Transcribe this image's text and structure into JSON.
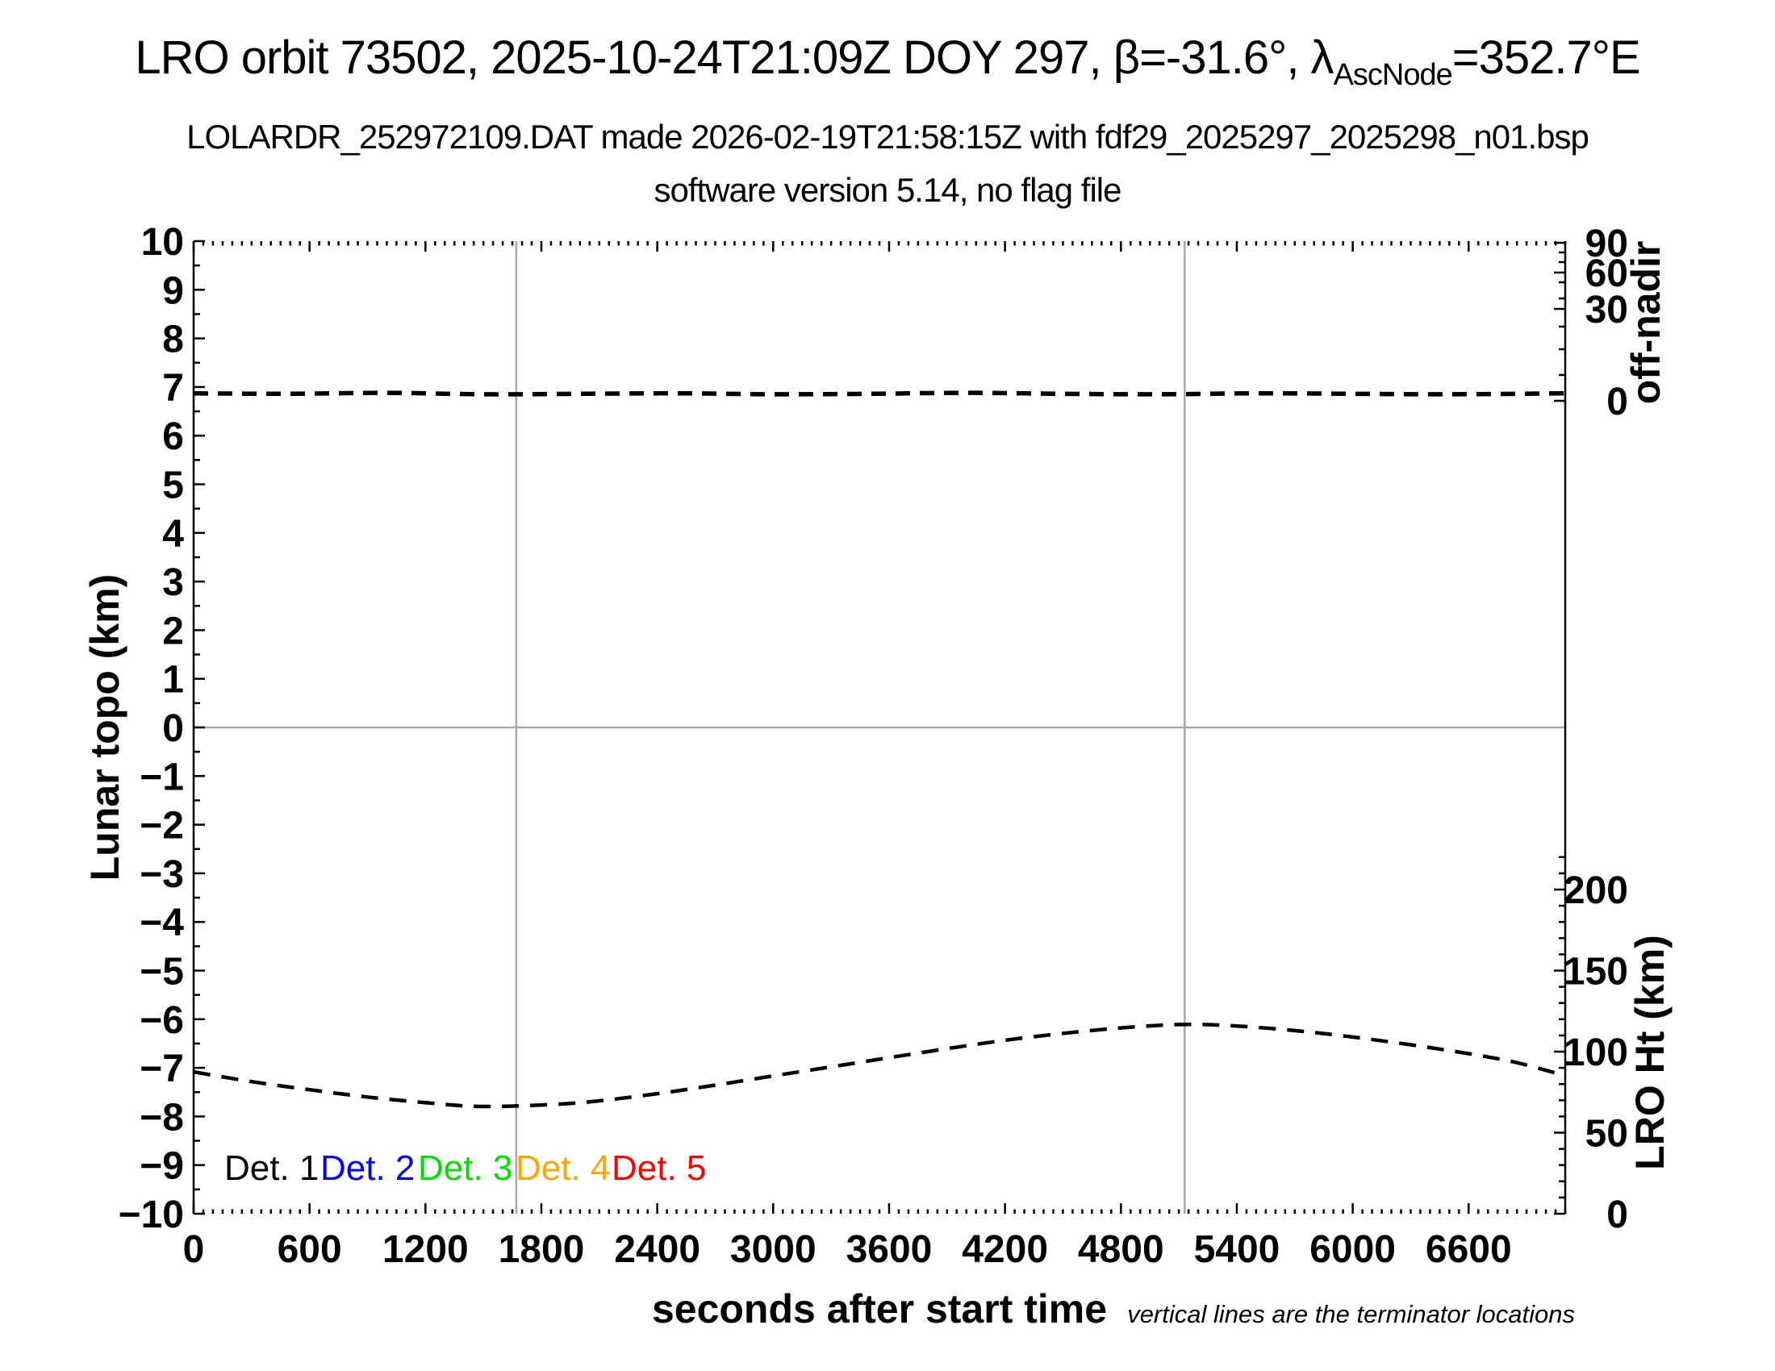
{
  "title": {
    "part1": "LRO orbit 73502, 2025-10-24T21:09Z DOY 297, β=-31.6°, λ",
    "subscript": "AscNode",
    "part2": "=352.7°E"
  },
  "subtitle1": "LOLARDR_252972109.DAT made 2026-02-19T21:58:15Z with fdf29_2025297_2025298_n01.bsp",
  "subtitle2": "software version 5.14, no flag file",
  "footnote": "vertical lines are the terminator locations",
  "legend": {
    "items": [
      {
        "label": "Det. 1",
        "color": "#000000"
      },
      {
        "label": "Det. 2",
        "color": "#0000ff"
      },
      {
        "label": "Det. 3",
        "color": "#00dd00"
      },
      {
        "label": "Det. 4",
        "color": "#ffa500"
      },
      {
        "label": "Det. 5",
        "color": "#ff0000"
      }
    ]
  },
  "colors": {
    "curve": "#000000",
    "gridline": "#a8a8a8",
    "frame": "#000000"
  },
  "chart_data": {
    "type": "line",
    "title": "LRO orbit 73502, 2025-10-24T21:09Z DOY 297, β=-31.6°, λ AscNode=352.7°E",
    "xlabel": "seconds after start time",
    "ylabel_left": "Lunar topo (km)",
    "ylabel_right_top": "off-nadir",
    "ylabel_right_bottom": "LRO Ht (km)",
    "grid": "terminator verticals + zero horizontal only",
    "legend_position": "inside lower-left, text-only colored labels",
    "axes": {
      "x": {
        "range": [
          0,
          7100
        ],
        "major_ticks": [
          0,
          600,
          1200,
          1800,
          2400,
          3000,
          3600,
          4200,
          4800,
          5400,
          6000,
          6600
        ],
        "minor_step": 50
      },
      "y_left": {
        "range": [
          -10,
          10
        ],
        "major_step": 1,
        "minor_step": 0.5,
        "major_tick_labels": [
          "10",
          "9",
          "8",
          "7",
          "6",
          "5",
          "4",
          "3",
          "2",
          "1",
          "0",
          "−1",
          "−2",
          "−3",
          "−4",
          "−5",
          "−6",
          "−7",
          "−8",
          "−9",
          "−10"
        ]
      },
      "y_right_top": {
        "tick_values": [
          90,
          60,
          30,
          0
        ],
        "tick_pos_frac_from_top": [
          0.0017,
          0.0323,
          0.0697,
          0.1642
        ],
        "minor_pos_frac_from_top": [
          0.0116,
          0.0216,
          0.0423,
          0.0589,
          0.0879,
          0.1111,
          0.1376
        ],
        "scale_note": "nonlinear (sine-like), 90 deg at frame top"
      },
      "y_right_bottom": {
        "range_km": [
          0,
          220
        ],
        "major_ticks": [
          200,
          150,
          100,
          50,
          0
        ],
        "minor_step_km": 10,
        "km_per_left_axis_unit": 30,
        "zero_km_at_left_axis_value": -10
      }
    },
    "terminator_lines_x_seconds": [
      1670,
      5130
    ],
    "zero_topo_gridline": 0,
    "series": [
      {
        "name": "spacecraft off-nadir angle (Det. 1–5 traces overlapping)",
        "style": "dashed",
        "color": "#000000",
        "axis": "left (plotted near topo value 6.86, just above off-nadir 0 tick)",
        "points_t_topo": [
          [
            0,
            6.87
          ],
          [
            500,
            6.86
          ],
          [
            1000,
            6.88
          ],
          [
            1500,
            6.85
          ],
          [
            2000,
            6.86
          ],
          [
            2500,
            6.87
          ],
          [
            3000,
            6.85
          ],
          [
            3500,
            6.86
          ],
          [
            4000,
            6.88
          ],
          [
            4500,
            6.86
          ],
          [
            5000,
            6.85
          ],
          [
            5500,
            6.87
          ],
          [
            6000,
            6.86
          ],
          [
            6500,
            6.85
          ],
          [
            7100,
            6.87
          ]
        ]
      },
      {
        "name": "LRO height above surface",
        "style": "dashed",
        "color": "#000000",
        "axis": "right bottom (km)",
        "points_t_km": [
          [
            0,
            87.5
          ],
          [
            300,
            81.5
          ],
          [
            600,
            76.5
          ],
          [
            900,
            72.0
          ],
          [
            1200,
            68.5
          ],
          [
            1450,
            66.3
          ],
          [
            1700,
            66.6
          ],
          [
            2000,
            68.5
          ],
          [
            2300,
            72.5
          ],
          [
            2600,
            77.5
          ],
          [
            3000,
            85.0
          ],
          [
            3400,
            92.5
          ],
          [
            3800,
            100.0
          ],
          [
            4200,
            107.0
          ],
          [
            4600,
            112.5
          ],
          [
            4900,
            115.5
          ],
          [
            5150,
            116.8
          ],
          [
            5400,
            115.8
          ],
          [
            5700,
            113.0
          ],
          [
            6000,
            109.0
          ],
          [
            6400,
            102.5
          ],
          [
            6800,
            94.5
          ],
          [
            7060,
            86.5
          ]
        ]
      }
    ]
  }
}
